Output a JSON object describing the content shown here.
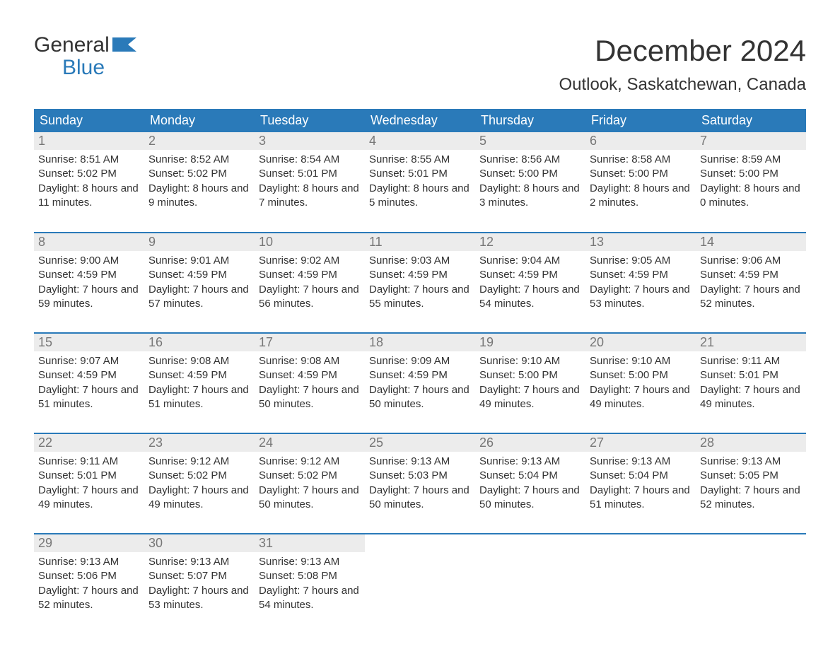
{
  "brand": {
    "line1": "General",
    "line2": "Blue",
    "accent_color": "#2a7ab9"
  },
  "title": "December 2024",
  "location": "Outlook, Saskatchewan, Canada",
  "colors": {
    "header_bg": "#2a7ab9",
    "header_text": "#ffffff",
    "daynum_bg": "#ececec",
    "daynum_text": "#777777",
    "body_text": "#333333",
    "page_bg": "#ffffff",
    "week_border": "#2a7ab9"
  },
  "typography": {
    "title_fontsize": 42,
    "location_fontsize": 24,
    "header_fontsize": 18,
    "daynum_fontsize": 18,
    "body_fontsize": 15,
    "logo_fontsize": 30
  },
  "weekdays": [
    "Sunday",
    "Monday",
    "Tuesday",
    "Wednesday",
    "Thursday",
    "Friday",
    "Saturday"
  ],
  "weeks": [
    [
      {
        "n": "1",
        "sr": "8:51 AM",
        "ss": "5:02 PM",
        "dl": "8 hours and 11 minutes."
      },
      {
        "n": "2",
        "sr": "8:52 AM",
        "ss": "5:02 PM",
        "dl": "8 hours and 9 minutes."
      },
      {
        "n": "3",
        "sr": "8:54 AM",
        "ss": "5:01 PM",
        "dl": "8 hours and 7 minutes."
      },
      {
        "n": "4",
        "sr": "8:55 AM",
        "ss": "5:01 PM",
        "dl": "8 hours and 5 minutes."
      },
      {
        "n": "5",
        "sr": "8:56 AM",
        "ss": "5:00 PM",
        "dl": "8 hours and 3 minutes."
      },
      {
        "n": "6",
        "sr": "8:58 AM",
        "ss": "5:00 PM",
        "dl": "8 hours and 2 minutes."
      },
      {
        "n": "7",
        "sr": "8:59 AM",
        "ss": "5:00 PM",
        "dl": "8 hours and 0 minutes."
      }
    ],
    [
      {
        "n": "8",
        "sr": "9:00 AM",
        "ss": "4:59 PM",
        "dl": "7 hours and 59 minutes."
      },
      {
        "n": "9",
        "sr": "9:01 AM",
        "ss": "4:59 PM",
        "dl": "7 hours and 57 minutes."
      },
      {
        "n": "10",
        "sr": "9:02 AM",
        "ss": "4:59 PM",
        "dl": "7 hours and 56 minutes."
      },
      {
        "n": "11",
        "sr": "9:03 AM",
        "ss": "4:59 PM",
        "dl": "7 hours and 55 minutes."
      },
      {
        "n": "12",
        "sr": "9:04 AM",
        "ss": "4:59 PM",
        "dl": "7 hours and 54 minutes."
      },
      {
        "n": "13",
        "sr": "9:05 AM",
        "ss": "4:59 PM",
        "dl": "7 hours and 53 minutes."
      },
      {
        "n": "14",
        "sr": "9:06 AM",
        "ss": "4:59 PM",
        "dl": "7 hours and 52 minutes."
      }
    ],
    [
      {
        "n": "15",
        "sr": "9:07 AM",
        "ss": "4:59 PM",
        "dl": "7 hours and 51 minutes."
      },
      {
        "n": "16",
        "sr": "9:08 AM",
        "ss": "4:59 PM",
        "dl": "7 hours and 51 minutes."
      },
      {
        "n": "17",
        "sr": "9:08 AM",
        "ss": "4:59 PM",
        "dl": "7 hours and 50 minutes."
      },
      {
        "n": "18",
        "sr": "9:09 AM",
        "ss": "4:59 PM",
        "dl": "7 hours and 50 minutes."
      },
      {
        "n": "19",
        "sr": "9:10 AM",
        "ss": "5:00 PM",
        "dl": "7 hours and 49 minutes."
      },
      {
        "n": "20",
        "sr": "9:10 AM",
        "ss": "5:00 PM",
        "dl": "7 hours and 49 minutes."
      },
      {
        "n": "21",
        "sr": "9:11 AM",
        "ss": "5:01 PM",
        "dl": "7 hours and 49 minutes."
      }
    ],
    [
      {
        "n": "22",
        "sr": "9:11 AM",
        "ss": "5:01 PM",
        "dl": "7 hours and 49 minutes."
      },
      {
        "n": "23",
        "sr": "9:12 AM",
        "ss": "5:02 PM",
        "dl": "7 hours and 49 minutes."
      },
      {
        "n": "24",
        "sr": "9:12 AM",
        "ss": "5:02 PM",
        "dl": "7 hours and 50 minutes."
      },
      {
        "n": "25",
        "sr": "9:13 AM",
        "ss": "5:03 PM",
        "dl": "7 hours and 50 minutes."
      },
      {
        "n": "26",
        "sr": "9:13 AM",
        "ss": "5:04 PM",
        "dl": "7 hours and 50 minutes."
      },
      {
        "n": "27",
        "sr": "9:13 AM",
        "ss": "5:04 PM",
        "dl": "7 hours and 51 minutes."
      },
      {
        "n": "28",
        "sr": "9:13 AM",
        "ss": "5:05 PM",
        "dl": "7 hours and 52 minutes."
      }
    ],
    [
      {
        "n": "29",
        "sr": "9:13 AM",
        "ss": "5:06 PM",
        "dl": "7 hours and 52 minutes."
      },
      {
        "n": "30",
        "sr": "9:13 AM",
        "ss": "5:07 PM",
        "dl": "7 hours and 53 minutes."
      },
      {
        "n": "31",
        "sr": "9:13 AM",
        "ss": "5:08 PM",
        "dl": "7 hours and 54 minutes."
      },
      null,
      null,
      null,
      null
    ]
  ],
  "labels": {
    "sunrise": "Sunrise:",
    "sunset": "Sunset:",
    "daylight": "Daylight:"
  }
}
